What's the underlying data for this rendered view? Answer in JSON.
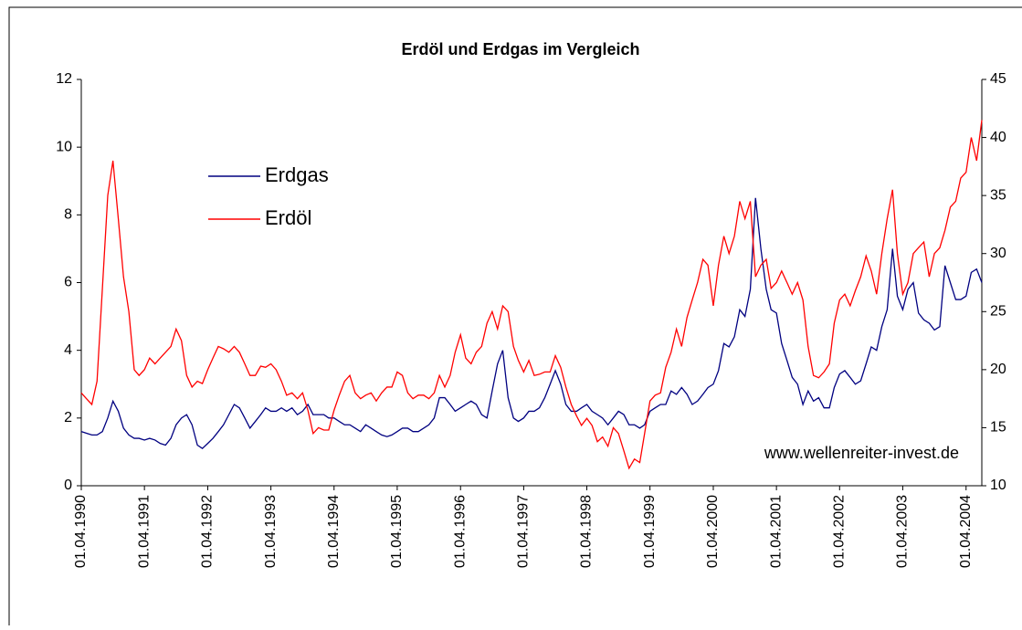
{
  "chart_data": {
    "type": "line",
    "title": "Erdöl und Erdgas im Vergleich",
    "annotation": "www.wellenreiter-invest.de",
    "legend": "upper left",
    "grid": false,
    "x": [
      "1990-04-01",
      "1990-05-01",
      "1990-06-01",
      "1990-07-01",
      "1990-08-01",
      "1990-09-01",
      "1990-10-01",
      "1990-11-01",
      "1990-12-01",
      "1991-01-01",
      "1991-02-01",
      "1991-03-01",
      "1991-04-01",
      "1991-05-01",
      "1991-06-01",
      "1991-07-01",
      "1991-08-01",
      "1991-09-01",
      "1991-10-01",
      "1991-11-01",
      "1991-12-01",
      "1992-01-01",
      "1992-02-01",
      "1992-03-01",
      "1992-04-01",
      "1992-05-01",
      "1992-06-01",
      "1992-07-01",
      "1992-08-01",
      "1992-09-01",
      "1992-10-01",
      "1992-11-01",
      "1992-12-01",
      "1993-01-01",
      "1993-02-01",
      "1993-03-01",
      "1993-04-01",
      "1993-05-01",
      "1993-06-01",
      "1993-07-01",
      "1993-08-01",
      "1993-09-01",
      "1993-10-01",
      "1993-11-01",
      "1993-12-01",
      "1994-01-01",
      "1994-02-01",
      "1994-03-01",
      "1994-04-01",
      "1994-05-01",
      "1994-06-01",
      "1994-07-01",
      "1994-08-01",
      "1994-09-01",
      "1994-10-01",
      "1994-11-01",
      "1994-12-01",
      "1995-01-01",
      "1995-02-01",
      "1995-03-01",
      "1995-04-01",
      "1995-05-01",
      "1995-06-01",
      "1995-07-01",
      "1995-08-01",
      "1995-09-01",
      "1995-10-01",
      "1995-11-01",
      "1995-12-01",
      "1996-01-01",
      "1996-02-01",
      "1996-03-01",
      "1996-04-01",
      "1996-05-01",
      "1996-06-01",
      "1996-07-01",
      "1996-08-01",
      "1996-09-01",
      "1996-10-01",
      "1996-11-01",
      "1996-12-01",
      "1997-01-01",
      "1997-02-01",
      "1997-03-01",
      "1997-04-01",
      "1997-05-01",
      "1997-06-01",
      "1997-07-01",
      "1997-08-01",
      "1997-09-01",
      "1997-10-01",
      "1997-11-01",
      "1997-12-01",
      "1998-01-01",
      "1998-02-01",
      "1998-03-01",
      "1998-04-01",
      "1998-05-01",
      "1998-06-01",
      "1998-07-01",
      "1998-08-01",
      "1998-09-01",
      "1998-10-01",
      "1998-11-01",
      "1998-12-01",
      "1999-01-01",
      "1999-02-01",
      "1999-03-01",
      "1999-04-01",
      "1999-05-01",
      "1999-06-01",
      "1999-07-01",
      "1999-08-01",
      "1999-09-01",
      "1999-10-01",
      "1999-11-01",
      "1999-12-01",
      "2000-01-01",
      "2000-02-01",
      "2000-03-01",
      "2000-04-01",
      "2000-05-01",
      "2000-06-01",
      "2000-07-01",
      "2000-08-01",
      "2000-09-01",
      "2000-10-01",
      "2000-11-01",
      "2000-12-01",
      "2001-01-01",
      "2001-02-01",
      "2001-03-01",
      "2001-04-01",
      "2001-05-01",
      "2001-06-01",
      "2001-07-01",
      "2001-08-01",
      "2001-09-01",
      "2001-10-01",
      "2001-11-01",
      "2001-12-01",
      "2002-01-01",
      "2002-02-01",
      "2002-03-01",
      "2002-04-01",
      "2002-05-01",
      "2002-06-01",
      "2002-07-01",
      "2002-08-01",
      "2002-09-01",
      "2002-10-01",
      "2002-11-01",
      "2002-12-01",
      "2003-01-01",
      "2003-02-01",
      "2003-03-01",
      "2003-04-01",
      "2003-05-01",
      "2003-06-01",
      "2003-07-01",
      "2003-08-01",
      "2003-09-01",
      "2003-10-01",
      "2003-11-01",
      "2003-12-01",
      "2004-01-01",
      "2004-02-01",
      "2004-03-01",
      "2004-04-01",
      "2004-05-01",
      "2004-06-01",
      "2004-07-01"
    ],
    "series": [
      {
        "name": "Erdgas",
        "color": "#000080",
        "axis": "y",
        "values": [
          1.6,
          1.55,
          1.5,
          1.5,
          1.6,
          2,
          2.5,
          2.2,
          1.7,
          1.5,
          1.4,
          1.4,
          1.35,
          1.4,
          1.35,
          1.25,
          1.2,
          1.4,
          1.8,
          2.0,
          2.1,
          1.8,
          1.2,
          1.1,
          1.25,
          1.4,
          1.6,
          1.8,
          2.1,
          2.4,
          2.3,
          2.0,
          1.7,
          1.9,
          2.1,
          2.3,
          2.2,
          2.2,
          2.3,
          2.2,
          2.3,
          2.1,
          2.2,
          2.4,
          2.1,
          2.1,
          2.1,
          2.0,
          2.0,
          1.9,
          1.8,
          1.8,
          1.7,
          1.6,
          1.8,
          1.7,
          1.6,
          1.5,
          1.45,
          1.5,
          1.6,
          1.7,
          1.7,
          1.6,
          1.6,
          1.7,
          1.8,
          2.0,
          2.6,
          2.6,
          2.4,
          2.2,
          2.3,
          2.4,
          2.5,
          2.4,
          2.1,
          2.0,
          2.8,
          3.6,
          4.0,
          2.6,
          2.0,
          1.9,
          2.0,
          2.2,
          2.2,
          2.3,
          2.6,
          3.0,
          3.4,
          3.0,
          2.4,
          2.2,
          2.2,
          2.3,
          2.4,
          2.2,
          2.1,
          2.0,
          1.8,
          2.0,
          2.2,
          2.1,
          1.8,
          1.8,
          1.7,
          1.8,
          2.2,
          2.3,
          2.4,
          2.4,
          2.8,
          2.7,
          2.9,
          2.7,
          2.4,
          2.5,
          2.7,
          2.9,
          3.0,
          3.4,
          4.2,
          4.1,
          4.4,
          5.2,
          5.0,
          5.8,
          8.5,
          7.0,
          5.8,
          5.2,
          5.1,
          4.2,
          3.7,
          3.2,
          3.0,
          2.4,
          2.8,
          2.5,
          2.6,
          2.3,
          2.3,
          2.9,
          3.3,
          3.4,
          3.2,
          3.0,
          3.1,
          3.6,
          4.1,
          4.0,
          4.7,
          5.2,
          7.0,
          5.6,
          5.2,
          5.8,
          6.0,
          5.1,
          4.9,
          4.8,
          4.6,
          4.7,
          6.5,
          6.0,
          5.5,
          5.5,
          5.6,
          6.3,
          6.4,
          6.0
        ]
      },
      {
        "name": "Erdöl",
        "color": "#ff0000",
        "axis": "y2",
        "values": [
          18,
          17.5,
          17,
          19,
          27,
          35,
          38,
          33,
          28,
          25,
          20,
          19.5,
          20,
          21,
          20.5,
          21,
          21.5,
          22,
          23.5,
          22.5,
          19.5,
          18.5,
          19,
          18.8,
          20,
          21,
          22,
          21.8,
          21.5,
          22,
          21.5,
          20.5,
          19.5,
          19.5,
          20.3,
          20.2,
          20.5,
          20,
          19,
          17.8,
          18,
          17.5,
          18,
          16.5,
          14.5,
          15,
          14.8,
          14.8,
          16.5,
          17.8,
          19,
          19.5,
          18,
          17.5,
          17.8,
          18,
          17.3,
          18,
          18.5,
          18.5,
          19.8,
          19.5,
          18,
          17.5,
          17.8,
          17.8,
          17.5,
          18,
          19.5,
          18.5,
          19.5,
          21.5,
          23,
          21,
          20.5,
          21.5,
          22,
          24,
          25,
          23.5,
          25.5,
          25,
          22,
          20.8,
          19.8,
          20.8,
          19.5,
          19.6,
          19.8,
          19.8,
          21.2,
          20.2,
          18.5,
          17,
          16,
          15.2,
          15.8,
          15.2,
          13.8,
          14.2,
          13.4,
          15,
          14.5,
          13,
          11.5,
          12.3,
          12,
          14.5,
          17.3,
          17.8,
          18,
          20.2,
          21.5,
          23.5,
          22,
          24.5,
          26,
          27.5,
          29.5,
          29,
          25.5,
          29,
          31.5,
          30,
          31.5,
          34.5,
          33,
          34.5,
          28,
          29,
          29.5,
          27,
          27.5,
          28.5,
          27.5,
          26.5,
          27.5,
          26,
          22,
          19.5,
          19.3,
          19.8,
          20.5,
          24,
          26,
          26.5,
          25.5,
          26.8,
          28,
          29.8,
          28.5,
          26.5,
          30,
          33,
          35.5,
          30,
          26.5,
          27.5,
          30,
          30.5,
          31,
          28,
          30,
          30.5,
          32,
          34,
          34.5,
          36.5,
          37,
          40,
          38,
          41.5
        ]
      }
    ],
    "xlim": [
      "1990-04-01",
      "2004-07-01"
    ],
    "xticks": [
      {
        "value": "1990-04-01",
        "label": "01.04.1990"
      },
      {
        "value": "1991-04-01",
        "label": "01.04.1991"
      },
      {
        "value": "1992-04-01",
        "label": "01.04.1992"
      },
      {
        "value": "1993-04-01",
        "label": "01.04.1993"
      },
      {
        "value": "1994-04-01",
        "label": "01.04.1994"
      },
      {
        "value": "1995-04-01",
        "label": "01.04.1995"
      },
      {
        "value": "1996-04-01",
        "label": "01.04.1996"
      },
      {
        "value": "1997-04-01",
        "label": "01.04.1997"
      },
      {
        "value": "1998-04-01",
        "label": "01.04.1998"
      },
      {
        "value": "1999-04-01",
        "label": "01.04.1999"
      },
      {
        "value": "2000-04-01",
        "label": "01.04.2000"
      },
      {
        "value": "2001-04-01",
        "label": "01.04.2001"
      },
      {
        "value": "2002-04-01",
        "label": "01.04.2002"
      },
      {
        "value": "2003-04-01",
        "label": "01.04.2003"
      },
      {
        "value": "2004-04-01",
        "label": "01.04.2004"
      }
    ],
    "ylim": [
      0,
      12
    ],
    "yticks": [
      0,
      2,
      4,
      6,
      8,
      10,
      12
    ],
    "y2lim": [
      10,
      45
    ],
    "y2ticks": [
      10,
      15,
      20,
      25,
      30,
      35,
      40,
      45
    ]
  }
}
